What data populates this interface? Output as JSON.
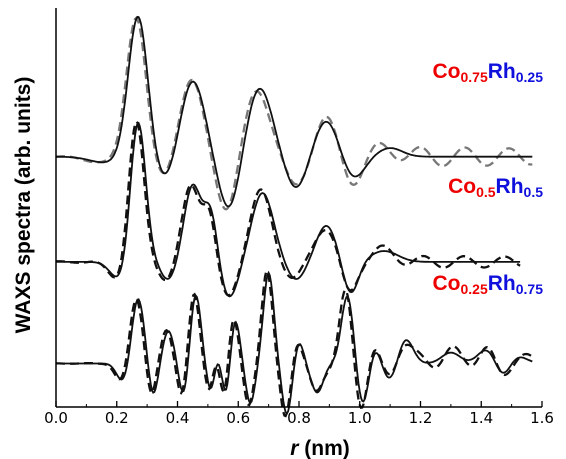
{
  "chart_data": {
    "type": "line",
    "xlabel": {
      "italic": "r",
      "rest": " (nm)"
    },
    "ylabel": "WAXS spectra (arb. units)",
    "xlim": [
      0.0,
      1.6
    ],
    "ylim": [
      0,
      5.5
    ],
    "xticks": [
      "0.0",
      "0.2",
      "0.4",
      "0.6",
      "0.8",
      "1.0",
      "1.2",
      "1.4",
      "1.6"
    ],
    "colors": {
      "element_a": "#ee0000",
      "element_b": "#1010dd",
      "solid": "#111111",
      "dashed_top": "#777777",
      "dashed": "#111111"
    },
    "samples": [
      {
        "label": [
          {
            "text": "Co",
            "color": "element_a",
            "sub": false
          },
          {
            "text": "0.75",
            "color": "element_a",
            "sub": true
          },
          {
            "text": "Rh",
            "color": "element_b",
            "sub": false
          },
          {
            "text": "0.25",
            "color": "element_b",
            "sub": true
          }
        ],
        "x_range": [
          0.0,
          1.57
        ],
        "offset": 3.45,
        "peaks": [
          [
            0.27,
            1.95,
            0.032
          ],
          [
            0.45,
            1.05,
            0.04
          ],
          [
            0.67,
            0.95,
            0.042
          ],
          [
            0.89,
            0.5,
            0.038
          ],
          [
            1.1,
            0.12,
            0.04
          ],
          [
            0.16,
            -0.08,
            0.05
          ],
          [
            0.36,
            -0.35,
            0.035
          ],
          [
            0.57,
            -0.75,
            0.035
          ],
          [
            0.79,
            -0.45,
            0.035
          ],
          [
            0.98,
            -0.3,
            0.035
          ]
        ],
        "dashed_mod": {
          "amp": 0.13,
          "freq": 43,
          "decay": 0.55
        }
      },
      {
        "label": [
          {
            "text": "Co",
            "color": "element_a",
            "sub": false
          },
          {
            "text": "0.5",
            "color": "element_a",
            "sub": true
          },
          {
            "text": "Rh",
            "color": "element_b",
            "sub": false
          },
          {
            "text": "0.5",
            "color": "element_b",
            "sub": true
          }
        ],
        "x_range": [
          0.0,
          1.53
        ],
        "offset": 2.0,
        "peaks": [
          [
            0.27,
            1.95,
            0.025
          ],
          [
            0.45,
            1.05,
            0.028
          ],
          [
            0.51,
            0.7,
            0.022
          ],
          [
            0.68,
            0.95,
            0.036
          ],
          [
            0.89,
            0.5,
            0.033
          ],
          [
            1.08,
            0.15,
            0.045
          ],
          [
            0.21,
            -0.25,
            0.03
          ],
          [
            0.37,
            -0.25,
            0.025
          ],
          [
            0.57,
            -0.5,
            0.03
          ],
          [
            0.79,
            -0.25,
            0.03
          ],
          [
            0.97,
            -0.45,
            0.025
          ]
        ],
        "dashed_mod": {
          "amp": 0.08,
          "freq": 47,
          "decay": 0.7
        }
      },
      {
        "label": [
          {
            "text": "Co",
            "color": "element_a",
            "sub": false
          },
          {
            "text": "0.25",
            "color": "element_a",
            "sub": true
          },
          {
            "text": "Rh",
            "color": "element_b",
            "sub": false
          },
          {
            "text": "0.75",
            "color": "element_b",
            "sub": true
          }
        ],
        "x_range": [
          0.0,
          1.57
        ],
        "offset": 0.6,
        "peaks": [
          [
            0.27,
            0.9,
            0.02
          ],
          [
            0.37,
            0.45,
            0.018
          ],
          [
            0.46,
            0.95,
            0.017
          ],
          [
            0.53,
            0.15,
            0.013
          ],
          [
            0.59,
            0.6,
            0.015
          ],
          [
            0.7,
            1.25,
            0.017
          ],
          [
            0.8,
            0.3,
            0.015
          ],
          [
            0.96,
            0.95,
            0.02
          ],
          [
            1.05,
            0.25,
            0.02
          ],
          [
            1.15,
            0.35,
            0.025
          ],
          [
            1.3,
            0.15,
            0.03
          ],
          [
            1.42,
            0.2,
            0.03
          ],
          [
            1.52,
            0.1,
            0.03
          ],
          [
            0.22,
            -0.25,
            0.02
          ],
          [
            0.32,
            -0.45,
            0.015
          ],
          [
            0.42,
            -0.45,
            0.015
          ],
          [
            0.51,
            -0.4,
            0.014
          ],
          [
            0.56,
            -0.45,
            0.013
          ],
          [
            0.64,
            -0.55,
            0.015
          ],
          [
            0.76,
            -0.7,
            0.016
          ],
          [
            0.86,
            -0.4,
            0.02
          ],
          [
            1.01,
            -0.6,
            0.02
          ],
          [
            1.1,
            -0.25,
            0.025
          ],
          [
            1.47,
            -0.2,
            0.025
          ]
        ],
        "dashed_mod": {
          "amp": 0.11,
          "freq": 52,
          "decay": 0.4
        }
      }
    ]
  }
}
